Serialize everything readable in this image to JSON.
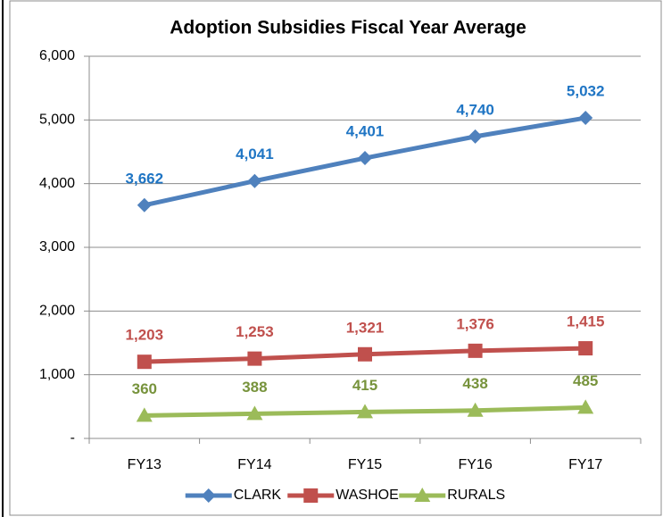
{
  "chart_data": {
    "type": "line",
    "title": "Adoption Subsidies Fiscal Year Average",
    "categories": [
      "FY13",
      "FY14",
      "FY15",
      "FY16",
      "FY17"
    ],
    "series": [
      {
        "name": "CLARK",
        "color": "#4f81bd",
        "label_color": "#1f75c4",
        "marker": "diamond",
        "values": [
          3662,
          4041,
          4401,
          4740,
          5032
        ],
        "value_labels": [
          "3,662",
          "4,041",
          "4,401",
          "4,740",
          "5,032"
        ]
      },
      {
        "name": "WASHOE",
        "color": "#c0504d",
        "label_color": "#c0504d",
        "marker": "square",
        "values": [
          1203,
          1253,
          1321,
          1376,
          1415
        ],
        "value_labels": [
          "1,203",
          "1,253",
          "1,321",
          "1,376",
          "1,415"
        ]
      },
      {
        "name": "RURALS",
        "color": "#9bbb59",
        "label_color": "#77933c",
        "marker": "triangle",
        "values": [
          360,
          388,
          415,
          438,
          485
        ]
      }
    ],
    "ylim": [
      0,
      6000
    ],
    "yticks": [
      {
        "value": 0,
        "label": "-"
      },
      {
        "value": 1000,
        "label": "1,000"
      },
      {
        "value": 2000,
        "label": "2,000"
      },
      {
        "value": 3000,
        "label": "3,000"
      },
      {
        "value": 4000,
        "label": "4,000"
      },
      {
        "value": 5000,
        "label": "5,000"
      },
      {
        "value": 6000,
        "label": "6,000"
      }
    ],
    "grid": true,
    "legend": "bottom"
  }
}
